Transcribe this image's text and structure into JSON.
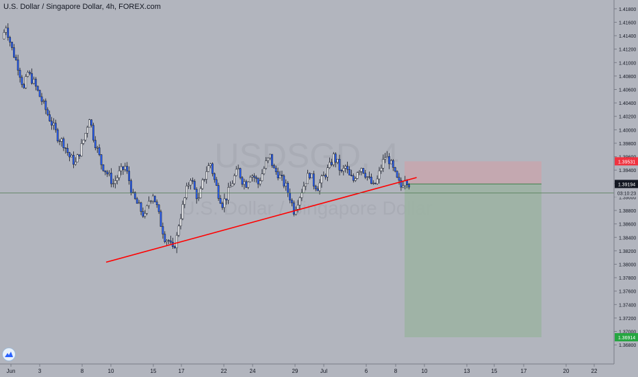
{
  "chart_data": {
    "type": "candlestick",
    "title": "U.S. Dollar / Singapore Dollar, 4h, FOREX.com",
    "watermark_symbol": "USDSGD, 4",
    "watermark_name": "U.S. Dollar / Singapore Dollar",
    "x_tick_labels": [
      "Jun",
      "3",
      "8",
      "10",
      "15",
      "17",
      "22",
      "24",
      "29",
      "Jul",
      "6",
      "8",
      "10",
      "13",
      "15",
      "17",
      "20",
      "22"
    ],
    "y_tick_labels": [
      "1.41800",
      "1.41600",
      "1.41400",
      "1.41200",
      "1.41000",
      "1.40800",
      "1.40600",
      "1.40400",
      "1.40200",
      "1.40000",
      "1.39800",
      "1.39600",
      "1.39400",
      "1.39200",
      "1.39000",
      "1.38800",
      "1.38600",
      "1.38400",
      "1.38200",
      "1.38000",
      "1.37800",
      "1.37600",
      "1.37400",
      "1.37200",
      "1.37000",
      "1.36800"
    ],
    "ylim": [
      1.3672,
      1.4188
    ],
    "close_path": [
      [
        0,
        1.4135
      ],
      [
        2,
        1.4155
      ],
      [
        5,
        1.412
      ],
      [
        8,
        1.4095
      ],
      [
        11,
        1.406
      ],
      [
        13,
        1.4085
      ],
      [
        16,
        1.407
      ],
      [
        19,
        1.405
      ],
      [
        22,
        1.403
      ],
      [
        25,
        1.401
      ],
      [
        28,
        1.399
      ],
      [
        31,
        1.398
      ],
      [
        34,
        1.396
      ],
      [
        37,
        1.395
      ],
      [
        40,
        1.3975
      ],
      [
        42,
        1.3995
      ],
      [
        44,
        1.402
      ],
      [
        46,
        1.399
      ],
      [
        48,
        1.397
      ],
      [
        50,
        1.395
      ],
      [
        53,
        1.3935
      ],
      [
        56,
        1.392
      ],
      [
        59,
        1.3935
      ],
      [
        62,
        1.3945
      ],
      [
        64,
        1.3925
      ],
      [
        66,
        1.39
      ],
      [
        68,
        1.389
      ],
      [
        70,
        1.388
      ],
      [
        72,
        1.387
      ],
      [
        74,
        1.3895
      ],
      [
        76,
        1.3905
      ],
      [
        78,
        1.3885
      ],
      [
        80,
        1.386
      ],
      [
        82,
        1.384
      ],
      [
        84,
        1.3835
      ],
      [
        86,
        1.382
      ],
      [
        88,
        1.384
      ],
      [
        89,
        1.386
      ],
      [
        91,
        1.3885
      ],
      [
        93,
        1.391
      ],
      [
        95,
        1.393
      ],
      [
        97,
        1.391
      ],
      [
        99,
        1.3895
      ],
      [
        101,
        1.392
      ],
      [
        103,
        1.394
      ],
      [
        105,
        1.395
      ],
      [
        107,
        1.3925
      ],
      [
        109,
        1.3905
      ],
      [
        111,
        1.389
      ],
      [
        113,
        1.39
      ],
      [
        115,
        1.3915
      ],
      [
        117,
        1.393
      ],
      [
        119,
        1.394
      ],
      [
        121,
        1.3925
      ],
      [
        123,
        1.392
      ],
      [
        125,
        1.3935
      ],
      [
        127,
        1.393
      ],
      [
        129,
        1.392
      ],
      [
        131,
        1.3935
      ],
      [
        133,
        1.395
      ],
      [
        135,
        1.396
      ],
      [
        137,
        1.394
      ],
      [
        139,
        1.3935
      ],
      [
        141,
        1.3925
      ],
      [
        143,
        1.3915
      ],
      [
        145,
        1.39
      ],
      [
        147,
        1.388
      ],
      [
        149,
        1.3895
      ],
      [
        151,
        1.391
      ],
      [
        153,
        1.3925
      ],
      [
        155,
        1.3935
      ],
      [
        157,
        1.392
      ],
      [
        159,
        1.3915
      ],
      [
        161,
        1.3925
      ],
      [
        163,
        1.3935
      ],
      [
        165,
        1.3945
      ],
      [
        167,
        1.396
      ],
      [
        169,
        1.395
      ],
      [
        171,
        1.3935
      ],
      [
        173,
        1.3945
      ],
      [
        175,
        1.393
      ],
      [
        177,
        1.3925
      ],
      [
        179,
        1.394
      ],
      [
        181,
        1.3945
      ],
      [
        183,
        1.3935
      ],
      [
        185,
        1.3925
      ],
      [
        187,
        1.3915
      ],
      [
        189,
        1.3925
      ],
      [
        191,
        1.3945
      ],
      [
        193,
        1.396
      ],
      [
        195,
        1.3955
      ],
      [
        197,
        1.394
      ],
      [
        199,
        1.3925
      ],
      [
        201,
        1.3915
      ],
      [
        203,
        1.393
      ],
      [
        205,
        1.392
      ]
    ],
    "trendline": [
      [
        0,
        1.3803
      ],
      [
        126,
        1.3929
      ]
    ],
    "current_price": "1.39194",
    "current_price_value": 1.39194,
    "countdown": "03:10:23",
    "countdown_price_value": 1.3906,
    "stop_loss": "1.39531",
    "stop_loss_value": 1.39531,
    "take_profit": "1.36914",
    "take_profit_value": 1.36914,
    "colors": {
      "background": "#b2b5be",
      "up_body": "#ffffff",
      "down_body": "#2962ff",
      "wick": "#131722",
      "trendline": "#ff0000",
      "risk_zone": "#c7a6ae",
      "reward_zone": "#9cb3a3",
      "price_line": "#4f7a52",
      "stop_label": "#ef3340",
      "target_label": "#26a641",
      "current_label": "#131722"
    }
  }
}
